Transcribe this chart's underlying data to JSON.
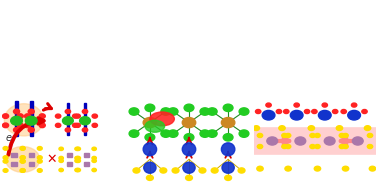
{
  "fig_width": 3.78,
  "fig_height": 1.88,
  "dpi": 100,
  "background": "#ffffff",
  "colors": {
    "red": "#ff2222",
    "green": "#22bb22",
    "blue": "#1133cc",
    "yellow": "#ffdd00",
    "orange": "#cc8822",
    "gray": "#999999",
    "pink_bg": "#ffaaaa",
    "purple": "#aa77aa",
    "dark_red": "#cc0000",
    "light_orange": "#ffcc88",
    "navy": "#0000aa",
    "bright_green": "#00cc00",
    "dark_blue": "#000099"
  }
}
